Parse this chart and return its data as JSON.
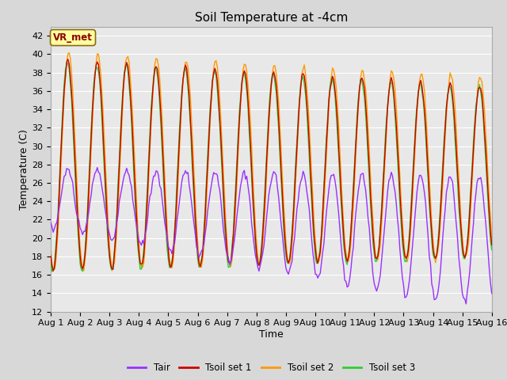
{
  "title": "Soil Temperature at -4cm",
  "xlabel": "Time",
  "ylabel": "Temperature (C)",
  "ylim": [
    12,
    43
  ],
  "yticks": [
    12,
    14,
    16,
    18,
    20,
    22,
    24,
    26,
    28,
    30,
    32,
    34,
    36,
    38,
    40,
    42
  ],
  "xlim": [
    0,
    360
  ],
  "xtick_positions": [
    0,
    24,
    48,
    72,
    96,
    120,
    144,
    168,
    192,
    216,
    240,
    264,
    288,
    312,
    336,
    360
  ],
  "xtick_labels": [
    "Aug 1",
    "Aug 2",
    "Aug 3",
    "Aug 4",
    "Aug 5",
    "Aug 6",
    "Aug 7",
    "Aug 8",
    "Aug 9",
    "Aug 10",
    "Aug 11",
    "Aug 12",
    "Aug 13",
    "Aug 14",
    "Aug 15",
    "Aug 16"
  ],
  "colors": {
    "Tair": "#9b30ff",
    "Tsoil1": "#cc0000",
    "Tsoil2": "#ff9900",
    "Tsoil3": "#33cc33"
  },
  "legend_labels": [
    "Tair",
    "Tsoil set 1",
    "Tsoil set 2",
    "Tsoil set 3"
  ],
  "annotation_text": "VR_met",
  "bg_color": "#e8e8e8",
  "grid_color": "#ffffff",
  "title_fontsize": 11,
  "axis_fontsize": 9,
  "tick_fontsize": 8
}
